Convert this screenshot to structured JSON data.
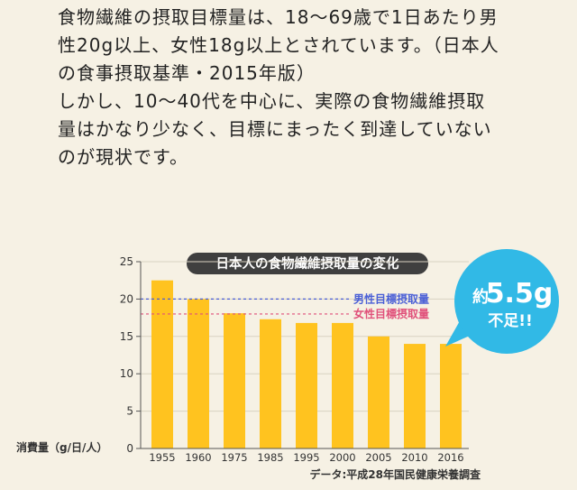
{
  "text": {
    "lines": [
      "食物繊維の摂取目標量は、18～69歳で1日あたり男",
      "性20g以上、女性18g以上とされています。（日本人",
      "の食事摂取基準・2015年版）",
      "しかし、10～40代を中心に、実際の食物繊維摂取",
      "量はかなり少なく、目標にまったく到達していない",
      "のが現状です。"
    ]
  },
  "callout": {
    "prefix": "約",
    "value": "5.5g",
    "suffix": "不足!!"
  },
  "colors": {
    "bar": "#ffc31f",
    "male_target": "#4a5fd6",
    "female_target": "#e0507a",
    "title_bg": "#3f3f3f",
    "callout": "#31b9e6",
    "background": "#f6f1e4"
  },
  "chart_data": {
    "type": "bar",
    "title": "日本人の食物繊維摂取量の変化",
    "ylabel": "消費量（g/日/人）",
    "source": "データ:平成28年国民健康栄養調査",
    "categories": [
      "1955",
      "1960",
      "1975",
      "1985",
      "1995",
      "2000",
      "2005",
      "2010",
      "2016"
    ],
    "values": [
      22.5,
      20.0,
      18.1,
      17.3,
      16.8,
      16.8,
      15.0,
      14.0,
      14.0
    ],
    "ylim": [
      0,
      25
    ],
    "yticks": [
      0,
      5,
      10,
      15,
      20,
      25
    ],
    "reference_lines": [
      {
        "label": "男性目標摂取量",
        "value": 20,
        "color": "#4a5fd6"
      },
      {
        "label": "女性目標摂取量",
        "value": 18,
        "color": "#e0507a"
      }
    ]
  }
}
